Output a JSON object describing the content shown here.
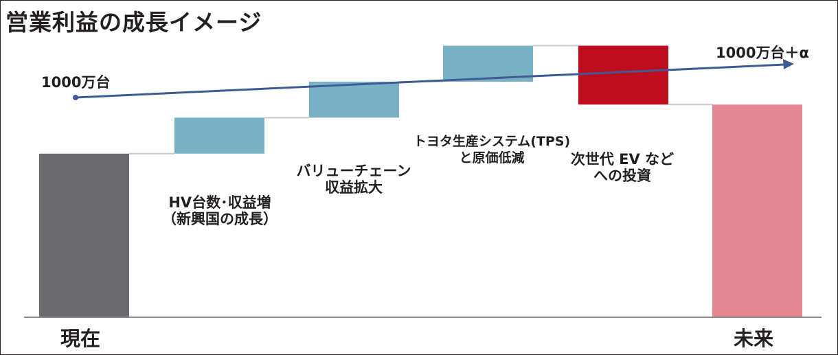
{
  "title": "営業利益の成長イメージ",
  "trend": {
    "start_label": "1000万台",
    "end_label": "1000万台＋α",
    "color": "#3e5b93"
  },
  "chart_data": {
    "type": "bar",
    "subtype": "waterfall",
    "categories": [
      "現在",
      "HV台数･収益増（新興国の成長）",
      "バリューチェーン収益拡大",
      "トヨタ生産システム(TPS)と原価低減",
      "次世代EVなどへの投資",
      "未来"
    ],
    "labels": {
      "current": "現在",
      "future": "未来",
      "step1": [
        "HV台数･収益増",
        "（新興国の成長）"
      ],
      "step2": [
        "バリューチェーン",
        "収益拡大"
      ],
      "step3": [
        "トヨタ生産システム(TPS)",
        "と原価低減"
      ],
      "step4": [
        "次世代 EV など",
        "への投資"
      ]
    },
    "steps": [
      {
        "kind": "total",
        "value": 100,
        "color": "#6b6a6e"
      },
      {
        "kind": "increase",
        "value": 22,
        "color": "#79b1c4"
      },
      {
        "kind": "increase",
        "value": 22,
        "color": "#79b1c4"
      },
      {
        "kind": "increase",
        "value": 22,
        "color": "#79b1c4"
      },
      {
        "kind": "decrease",
        "value": -36,
        "color": "#bf0d20"
      },
      {
        "kind": "total",
        "value": 130,
        "color": "#e38795"
      }
    ],
    "ylim": [
      0,
      170
    ],
    "grid": false,
    "legend": "none"
  }
}
